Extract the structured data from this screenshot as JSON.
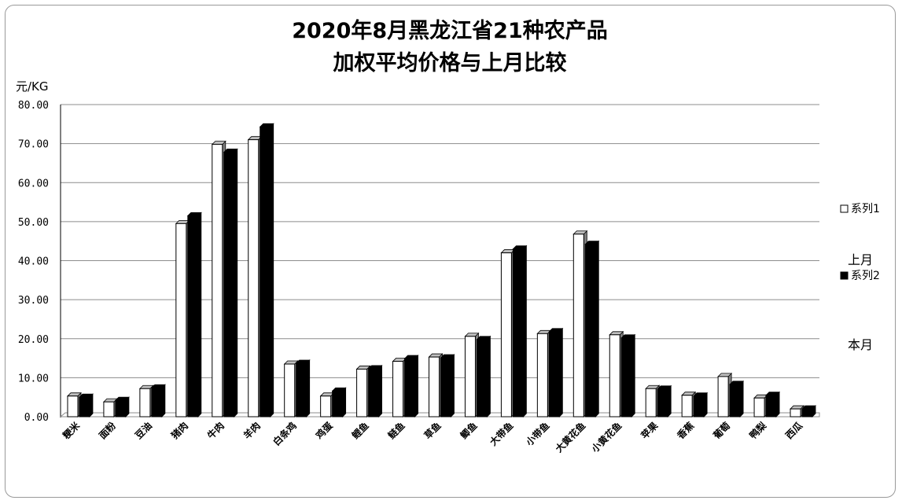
{
  "chart_data": {
    "type": "bar",
    "title_lines": [
      "2020年8月黑龙江省21种农产品",
      "加权平均价格与上月比较"
    ],
    "ylabel": "元/KG",
    "ylim": [
      0,
      80
    ],
    "ytick_step": 10,
    "ytick_labels": [
      "0.00",
      "10.00",
      "20.00",
      "30.00",
      "40.00",
      "50.00",
      "60.00",
      "70.00",
      "80.00"
    ],
    "grid": true,
    "bar_style": "3d",
    "legend_position": "right",
    "categories": [
      "粳米",
      "面粉",
      "豆油",
      "猪肉",
      "牛肉",
      "羊肉",
      "白条鸡",
      "鸡蛋",
      "鲤鱼",
      "鲢鱼",
      "草鱼",
      "鲫鱼",
      "大带鱼",
      "小带鱼",
      "大黄花鱼",
      "小黄花鱼",
      "苹果",
      "香蕉",
      "葡萄",
      "鸭梨",
      "西瓜"
    ],
    "series": [
      {
        "name": "系列1",
        "note": "上月",
        "color": "#ffffff",
        "values": [
          5.3,
          3.8,
          7.2,
          49.5,
          69.8,
          71.0,
          13.5,
          5.3,
          12.2,
          14.2,
          15.3,
          20.6,
          42.0,
          21.3,
          46.8,
          21.0,
          7.2,
          5.5,
          10.3,
          4.8,
          2.0
        ]
      },
      {
        "name": "系列2",
        "note": "本月",
        "color": "#000000",
        "values": [
          5.0,
          4.2,
          7.4,
          51.5,
          67.8,
          74.3,
          13.7,
          6.6,
          12.3,
          14.9,
          15.1,
          19.8,
          43.0,
          21.8,
          44.2,
          20.2,
          7.1,
          5.3,
          8.3,
          5.5,
          2.0
        ]
      }
    ]
  }
}
